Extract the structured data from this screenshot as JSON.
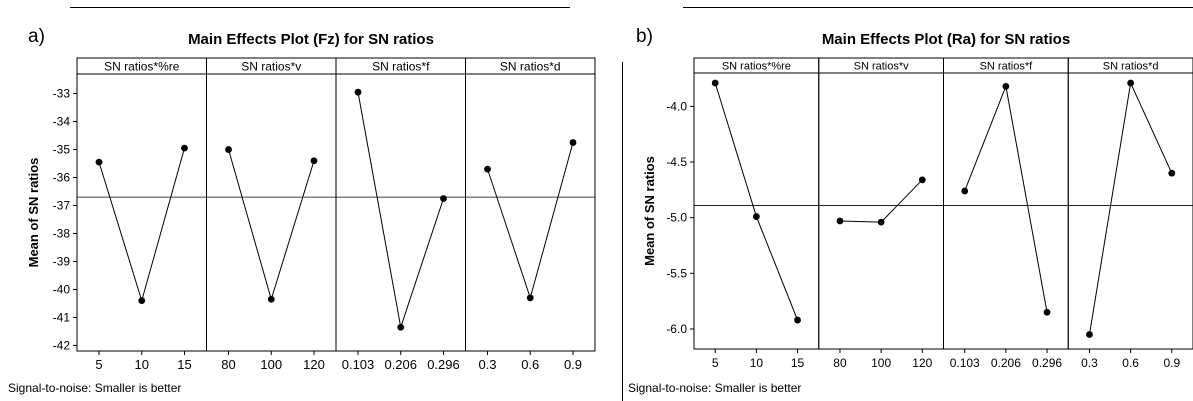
{
  "chart_data": [
    {
      "type": "line",
      "panel_label": "a)",
      "title": "Main Effects Plot (Fz) for SN ratios",
      "ylabel": "Mean of SN ratios",
      "footnote": "Signal-to-noise: Smaller is better",
      "ylim": [
        -42.2,
        -32.3
      ],
      "yticks": [
        "-33",
        "-34",
        "-35",
        "-36",
        "-37",
        "-38",
        "-39",
        "-40",
        "-41",
        "-42"
      ],
      "ytick_values": [
        -33,
        -34,
        -35,
        -36,
        -37,
        -38,
        -39,
        -40,
        -41,
        -42
      ],
      "reference_line": -36.7,
      "grid": false,
      "series": [
        {
          "name": "SN ratios*%re",
          "x": [
            "5",
            "10",
            "15"
          ],
          "values": [
            -35.45,
            -40.4,
            -34.95
          ]
        },
        {
          "name": "SN ratios*v",
          "x": [
            "80",
            "100",
            "120"
          ],
          "values": [
            -35.0,
            -40.35,
            -35.4
          ]
        },
        {
          "name": "SN ratios*f",
          "x": [
            "0.103",
            "0.206",
            "0.296"
          ],
          "values": [
            -32.95,
            -41.35,
            -36.75
          ]
        },
        {
          "name": "SN ratios*d",
          "x": [
            "0.3",
            "0.6",
            "0.9"
          ],
          "values": [
            -35.7,
            -40.3,
            -34.75
          ]
        }
      ]
    },
    {
      "type": "line",
      "panel_label": "b)",
      "title": "Main Effects Plot (Ra) for SN ratios",
      "ylabel": "Mean of SN ratios",
      "footnote": "Signal-to-noise: Smaller is better",
      "ylim": [
        -6.18,
        -3.7
      ],
      "yticks": [
        "-4.0",
        "-4.5",
        "-5.0",
        "-5.5",
        "-6.0"
      ],
      "ytick_values": [
        -4.0,
        -4.5,
        -5.0,
        -5.5,
        -6.0
      ],
      "reference_line": -4.89,
      "grid": false,
      "series": [
        {
          "name": "SN ratios*%re",
          "x": [
            "5",
            "10",
            "15"
          ],
          "values": [
            -3.79,
            -4.99,
            -5.92
          ]
        },
        {
          "name": "SN ratios*v",
          "x": [
            "80",
            "100",
            "120"
          ],
          "values": [
            -5.03,
            -5.04,
            -4.66
          ]
        },
        {
          "name": "SN ratios*f",
          "x": [
            "0.103",
            "0.206",
            "0.296"
          ],
          "values": [
            -4.76,
            -3.82,
            -5.85
          ]
        },
        {
          "name": "SN ratios*d",
          "x": [
            "0.3",
            "0.6",
            "0.9"
          ],
          "values": [
            -6.05,
            -3.79,
            -4.6
          ]
        }
      ]
    }
  ]
}
